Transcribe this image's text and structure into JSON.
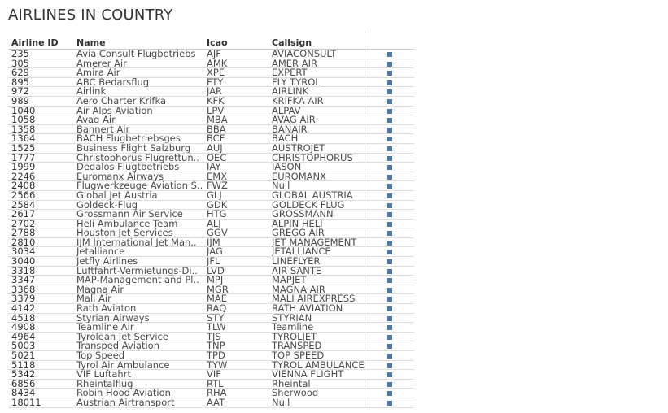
{
  "title": "AIRLINES IN COUNTRY",
  "columns": {
    "id": "Airline ID",
    "name": "Name",
    "icao": "Icao",
    "callsign": "Callsign"
  },
  "accent_color": "#4e79a7",
  "rows": [
    {
      "id": "235",
      "name": "Avia Consult Flugbetriebs",
      "icao": "AJF",
      "callsign": "AVIACONSULT"
    },
    {
      "id": "305",
      "name": "Amerer Air",
      "icao": "AMK",
      "callsign": "AMER AIR"
    },
    {
      "id": "629",
      "name": "Amira Air",
      "icao": "XPE",
      "callsign": "EXPERT"
    },
    {
      "id": "895",
      "name": "ABC Bedarsflug",
      "icao": "FTY",
      "callsign": "FLY TYROL"
    },
    {
      "id": "972",
      "name": "Airlink",
      "icao": "JAR",
      "callsign": "AIRLINK"
    },
    {
      "id": "989",
      "name": "Aero Charter Krifka",
      "icao": "KFK",
      "callsign": "KRIFKA AIR"
    },
    {
      "id": "1040",
      "name": "Air Alps Aviation",
      "icao": "LPV",
      "callsign": "ALPAV"
    },
    {
      "id": "1058",
      "name": "Avag Air",
      "icao": "MBA",
      "callsign": "AVAG AIR"
    },
    {
      "id": "1358",
      "name": "Bannert Air",
      "icao": "BBA",
      "callsign": "BANAIR"
    },
    {
      "id": "1364",
      "name": "BACH Flugbetriebsges",
      "icao": "BCF",
      "callsign": "BACH"
    },
    {
      "id": "1525",
      "name": "Business Flight Salzburg",
      "icao": "AUJ",
      "callsign": "AUSTROJET"
    },
    {
      "id": "1777",
      "name": "Christophorus Flugrettun..",
      "icao": "OEC",
      "callsign": "CHRISTOPHORUS"
    },
    {
      "id": "1999",
      "name": "Dedalos Flugtbetriebs",
      "icao": "IAY",
      "callsign": "IASON"
    },
    {
      "id": "2246",
      "name": "Euromanx Airways",
      "icao": "EMX",
      "callsign": "EUROMANX"
    },
    {
      "id": "2408",
      "name": "Flugwerkzeuge Aviation S..",
      "icao": "FWZ",
      "callsign": "Null"
    },
    {
      "id": "2566",
      "name": "Global Jet Austria",
      "icao": "GLJ",
      "callsign": "GLOBAL AUSTRIA"
    },
    {
      "id": "2584",
      "name": "Goldeck-Flug",
      "icao": "GDK",
      "callsign": "GOLDECK FLUG"
    },
    {
      "id": "2617",
      "name": "Grossmann Air Service",
      "icao": "HTG",
      "callsign": "GROSSMANN"
    },
    {
      "id": "2702",
      "name": "Heli Ambulance Team",
      "icao": "ALJ",
      "callsign": "ALPIN HELI"
    },
    {
      "id": "2788",
      "name": "Houston Jet Services",
      "icao": "GGV",
      "callsign": "GREGG AIR"
    },
    {
      "id": "2810",
      "name": "IJM International Jet Man..",
      "icao": "IJM",
      "callsign": "JET MANAGEMENT"
    },
    {
      "id": "3034",
      "name": "Jetalliance",
      "icao": "JAG",
      "callsign": "JETALLIANCE"
    },
    {
      "id": "3040",
      "name": "Jetfly Airlines",
      "icao": "JFL",
      "callsign": "LINEFLYER"
    },
    {
      "id": "3318",
      "name": "Luftfahrt-Vermietungs-Di..",
      "icao": "LVD",
      "callsign": "AIR SANTE"
    },
    {
      "id": "3347",
      "name": "MAP-Management and Pl..",
      "icao": "MPJ",
      "callsign": "MAPJET"
    },
    {
      "id": "3368",
      "name": "Magna Air",
      "icao": "MGR",
      "callsign": "MAGNA AIR"
    },
    {
      "id": "3379",
      "name": "Mali Air",
      "icao": "MAE",
      "callsign": "MALI AIREXPRESS"
    },
    {
      "id": "4142",
      "name": "Rath Aviaton",
      "icao": "RAQ",
      "callsign": "RATH AVIATION"
    },
    {
      "id": "4518",
      "name": "Styrian Airways",
      "icao": "STY",
      "callsign": "STYRIAN"
    },
    {
      "id": "4908",
      "name": "Teamline Air",
      "icao": "TLW",
      "callsign": "Teamline"
    },
    {
      "id": "4964",
      "name": "Tyrolean Jet Service",
      "icao": "TJS",
      "callsign": "TYROLJET"
    },
    {
      "id": "5003",
      "name": "Transped Aviation",
      "icao": "TNP",
      "callsign": "TRANSPED"
    },
    {
      "id": "5021",
      "name": "Top Speed",
      "icao": "TPD",
      "callsign": "TOP SPEED"
    },
    {
      "id": "5118",
      "name": "Tyrol Air Ambulance",
      "icao": "TYW",
      "callsign": "TYROL AMBULANCE"
    },
    {
      "id": "5342",
      "name": "VIF Luftahrt",
      "icao": "VIF",
      "callsign": "VIENNA FLIGHT"
    },
    {
      "id": "6856",
      "name": "Rheintalflug",
      "icao": "RTL",
      "callsign": "Rheintal"
    },
    {
      "id": "8434",
      "name": "Robin Hood Aviation",
      "icao": "RHA",
      "callsign": "Sherwood"
    },
    {
      "id": "18011",
      "name": "Austrian Airtransport",
      "icao": "AAT",
      "callsign": "Null"
    }
  ]
}
